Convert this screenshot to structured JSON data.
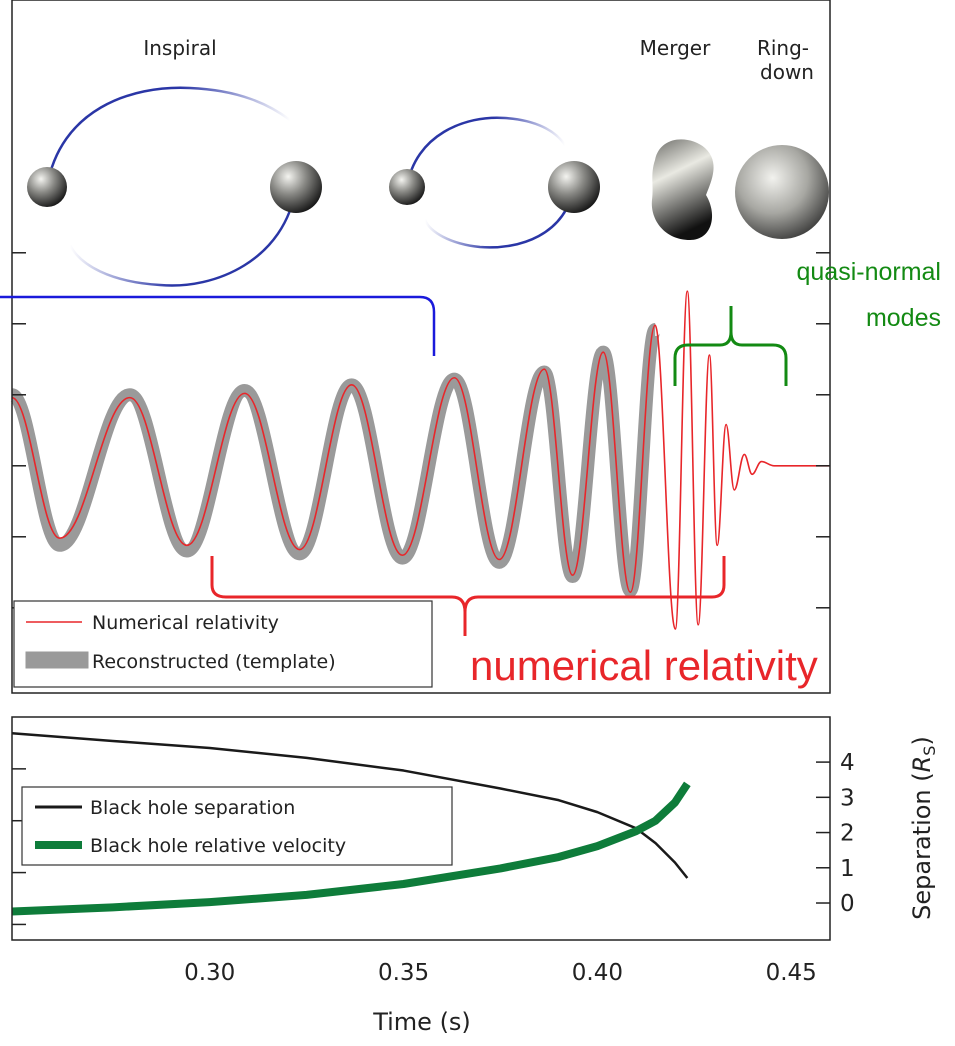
{
  "illustration": {
    "inspiral": "Inspiral",
    "merger": "Merger",
    "ringdown": [
      "Ring-",
      "down"
    ]
  },
  "annotations": {
    "quasi_normal_modes": [
      "quasi-normal",
      "modes"
    ],
    "numerical_relativity": "numerical relativity"
  },
  "chart_data": [
    {
      "type": "line",
      "x": [
        0.249,
        0.2613,
        0.2794,
        0.2941,
        0.309,
        0.3232,
        0.3366,
        0.3497,
        0.3631,
        0.3747,
        0.3863,
        0.3936,
        0.4015,
        0.4085,
        0.4149,
        0.4201,
        0.4232,
        0.426,
        0.4289,
        0.4309,
        0.4332,
        0.4353,
        0.4379,
        0.4399,
        0.4423,
        0.4456,
        0.4598
      ],
      "series": [
        {
          "name": "Reconstructed (template)",
          "color": "#9a9a9a",
          "values": [
            0.5,
            -0.56,
            0.5,
            -0.6,
            0.53,
            -0.62,
            0.57,
            -0.65,
            0.61,
            -0.68,
            0.66,
            -0.78,
            0.8,
            -0.88,
            0.96,
            null,
            null,
            null,
            null,
            null,
            null,
            null,
            null,
            null,
            null,
            null,
            null
          ]
        },
        {
          "name": "Numerical relativity",
          "color": "#e8262a",
          "values": [
            0.48,
            -0.51,
            0.48,
            -0.56,
            0.51,
            -0.59,
            0.57,
            -0.63,
            0.62,
            -0.66,
            0.68,
            -0.77,
            0.8,
            -0.89,
            0.99,
            -1.15,
            1.23,
            -1.12,
            0.78,
            -0.56,
            0.29,
            -0.17,
            0.08,
            -0.06,
            0.03,
            0,
            0
          ]
        }
      ],
      "xlim": [
        0.249,
        0.46
      ],
      "xticks": [
        0.3,
        0.35,
        0.4,
        0.45
      ],
      "ylim": [
        -1.6,
        3.28
      ],
      "yticks": [
        -1,
        -0.5,
        0,
        0.5,
        1,
        1.5
      ],
      "grid": true,
      "smooth": true
    },
    {
      "type": "line",
      "x": [
        0.249,
        0.275,
        0.3,
        0.325,
        0.35,
        0.375,
        0.39,
        0.4,
        0.41,
        0.415,
        0.42,
        0.4232
      ],
      "series": [
        {
          "name": "Black hole separation",
          "color": "#1a1a1a",
          "axis": "y2",
          "values": [
            4.82,
            4.6,
            4.4,
            4.12,
            3.76,
            3.25,
            2.92,
            2.58,
            2.12,
            1.7,
            1.15,
            0.71
          ]
        },
        {
          "name": "Black hole relative velocity",
          "color": "#0e7c3a",
          "values": [
            0.325,
            0.333,
            0.343,
            0.357,
            0.378,
            0.408,
            0.43,
            0.451,
            0.48,
            0.5,
            0.535,
            0.571
          ]
        }
      ],
      "xlim": [
        0.249,
        0.46
      ],
      "xticks": [
        {
          "value": 0.3,
          "label": "0.30"
        },
        0.35,
        {
          "value": 0.4,
          "label": "0.40"
        },
        0.45
      ],
      "xlabel": "Time (s)",
      "ylim": [
        0.27,
        0.7
      ],
      "yticks": [
        0.3,
        0.4,
        0.5,
        0.6
      ],
      "y2lim": [
        -1.05,
        5.28
      ],
      "y2ticks": [
        0,
        1,
        2,
        3,
        4
      ],
      "y2label": [
        "Separation (",
        "R",
        "S",
        ")"
      ],
      "grid": true
    }
  ]
}
